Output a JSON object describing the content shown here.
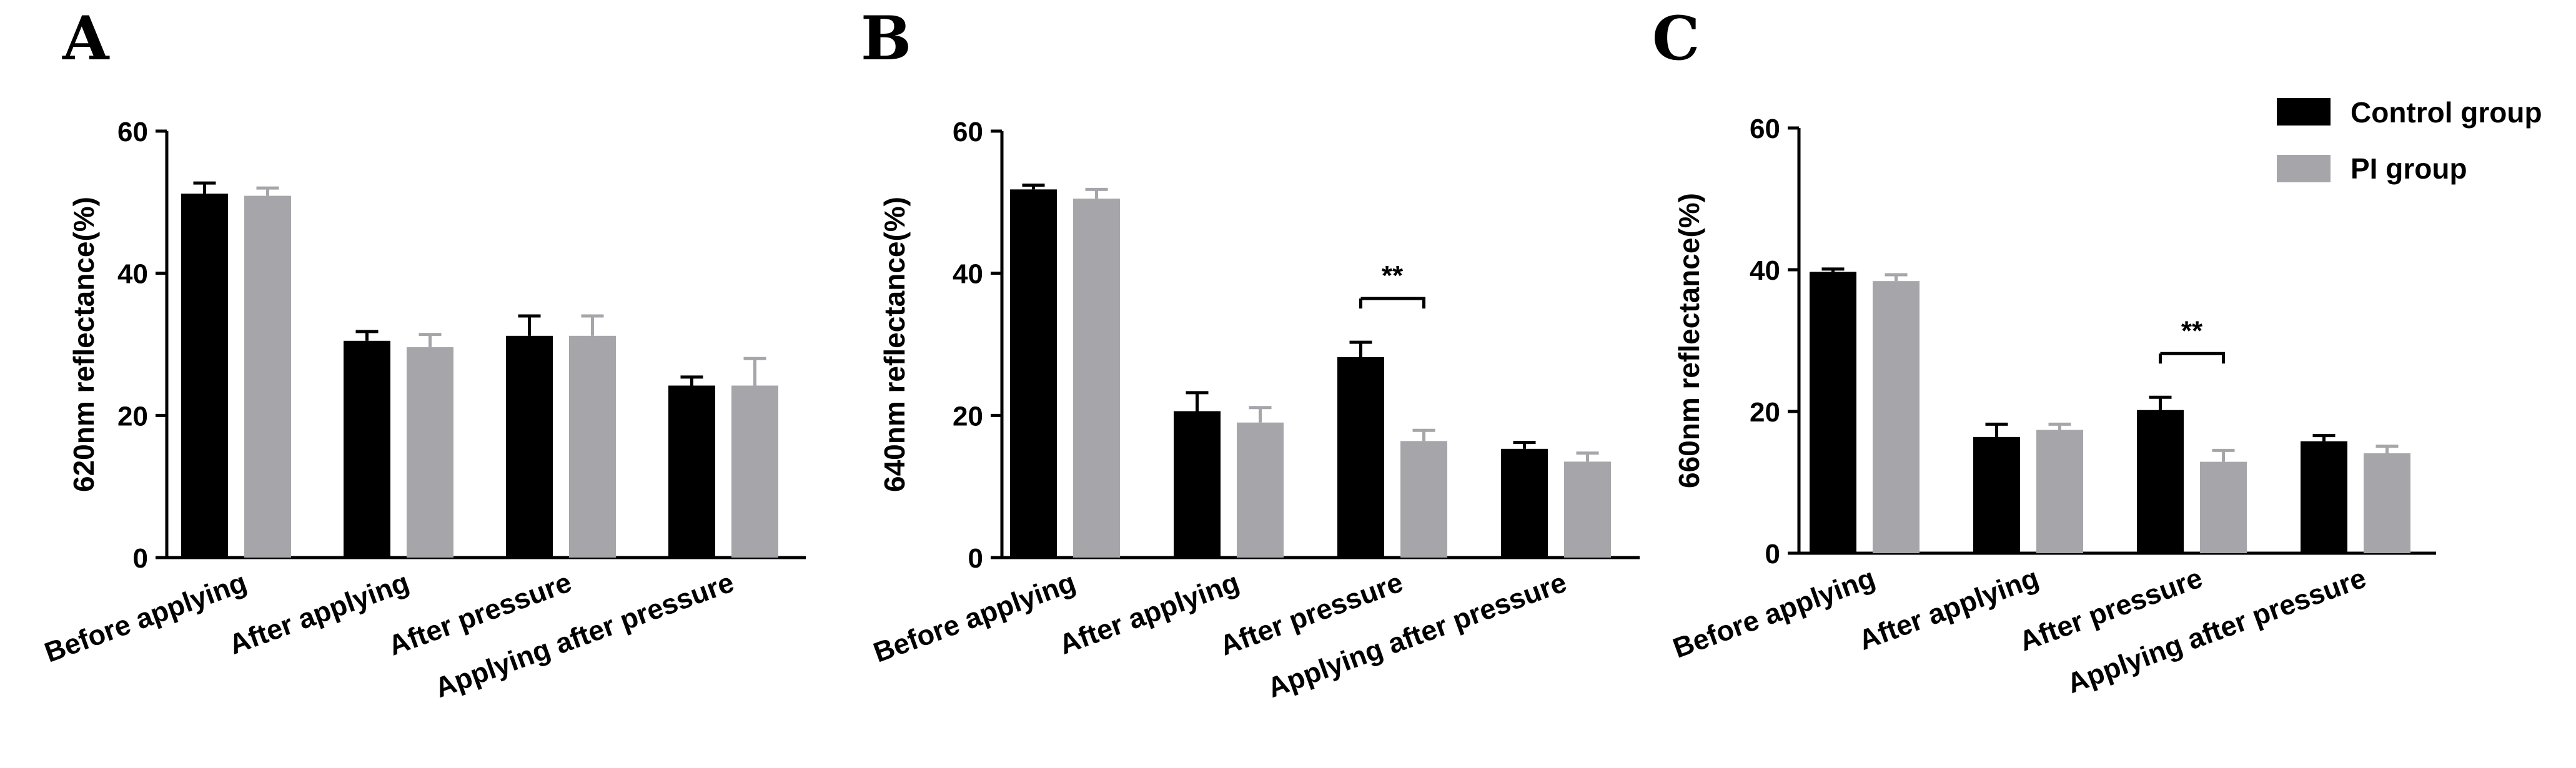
{
  "legend": {
    "position": "top-right",
    "entries": [
      {
        "label": "Control group",
        "color": "#000000"
      },
      {
        "label": "PI group",
        "color": "#a6a6aa"
      }
    ]
  },
  "chart_data": [
    {
      "panel": "A",
      "type": "bar",
      "title": "",
      "xlabel": "",
      "ylabel": "620nm reflectance(%)",
      "ylim": [
        0,
        60
      ],
      "yticks": [
        0,
        20,
        40,
        60
      ],
      "categories": [
        "Before applying",
        "After applying",
        "After pressure",
        "Applying after pressure"
      ],
      "series": [
        {
          "name": "Control group",
          "values": [
            51.2,
            30.5,
            31.2,
            24.2
          ],
          "errors": [
            1.5,
            1.3,
            2.8,
            1.2
          ]
        },
        {
          "name": "PI group",
          "values": [
            50.9,
            29.6,
            31.2,
            24.2
          ],
          "errors": [
            1.1,
            1.8,
            2.8,
            3.8
          ]
        }
      ],
      "annotations": []
    },
    {
      "panel": "B",
      "type": "bar",
      "title": "",
      "xlabel": "",
      "ylabel": "640nm reflectance(%)",
      "ylim": [
        0,
        60
      ],
      "yticks": [
        0,
        20,
        40,
        60
      ],
      "categories": [
        "Before applying",
        "After applying",
        "After pressure",
        "Applying after pressure"
      ],
      "series": [
        {
          "name": "Control group",
          "values": [
            51.8,
            20.6,
            28.2,
            15.3
          ],
          "errors": [
            0.6,
            2.6,
            2.1,
            0.9
          ]
        },
        {
          "name": "PI group",
          "values": [
            50.5,
            19.0,
            16.4,
            13.5
          ],
          "errors": [
            1.3,
            2.1,
            1.5,
            1.2
          ]
        }
      ],
      "annotations": [
        {
          "category_index": 2,
          "text": "**"
        }
      ]
    },
    {
      "panel": "C",
      "type": "bar",
      "title": "",
      "xlabel": "",
      "ylabel": "660nm reflectance(%)",
      "ylim": [
        0,
        60
      ],
      "yticks": [
        0,
        20,
        40,
        60
      ],
      "categories": [
        "Before applying",
        "After applying",
        "After pressure",
        "Applying after pressure"
      ],
      "series": [
        {
          "name": "Control group",
          "values": [
            39.7,
            16.4,
            20.2,
            15.8
          ],
          "errors": [
            0.4,
            1.8,
            1.8,
            0.8
          ]
        },
        {
          "name": "PI group",
          "values": [
            38.4,
            17.4,
            12.9,
            14.1
          ],
          "errors": [
            0.9,
            0.8,
            1.6,
            1.0
          ]
        }
      ],
      "annotations": [
        {
          "category_index": 2,
          "text": "**"
        }
      ]
    }
  ]
}
